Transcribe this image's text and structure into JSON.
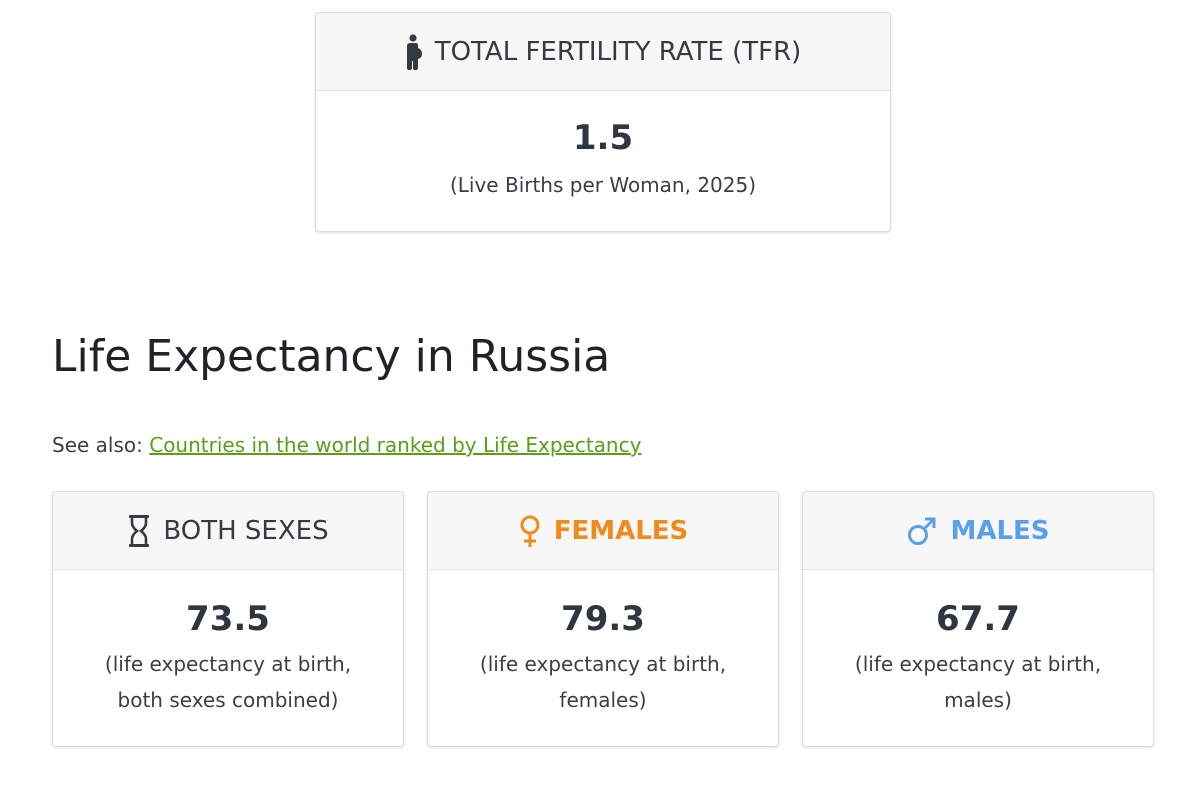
{
  "tfr": {
    "title": "TOTAL FERTILITY RATE (TFR)",
    "icon": "pregnant-woman-icon",
    "value": "1.5",
    "note": "(Live Births per Woman, 2025)"
  },
  "life_expectancy": {
    "title": "Life Expectancy in Russia",
    "see_also_prefix": "See also: ",
    "see_also_link": "Countries in the world ranked by Life Expectancy",
    "cards": [
      {
        "label": "BOTH SEXES",
        "icon": "hourglass-icon",
        "value": "73.5",
        "note_line1": "(life expectancy at birth,",
        "note_line2": "both sexes combined)"
      },
      {
        "label": "FEMALES",
        "icon": "female-symbol-icon",
        "color": "#f08a1c",
        "value": "79.3",
        "note_line1": "(life expectancy at birth,",
        "note_line2": "females)"
      },
      {
        "label": "MALES",
        "icon": "male-symbol-icon",
        "color": "#5aa0e8",
        "value": "67.7",
        "note_line1": "(life expectancy at birth,",
        "note_line2": "males)"
      }
    ]
  }
}
